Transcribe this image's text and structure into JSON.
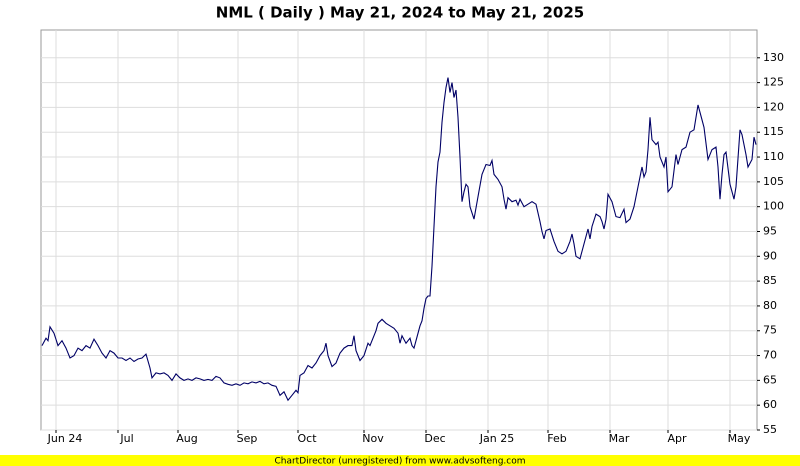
{
  "chart_data": {
    "type": "line",
    "title": "NML ( Daily ) May 21, 2024 to May 21, 2025",
    "footer": "ChartDirector (unregistered) from www.advsofteng.com",
    "xlim": [
      0.5,
      358.5
    ],
    "ylim": [
      55,
      135.6
    ],
    "yticks": [
      55,
      60,
      65,
      70,
      75,
      80,
      85,
      90,
      95,
      100,
      105,
      110,
      115,
      120,
      125,
      130
    ],
    "xticks": [
      {
        "value": 8,
        "label": "Jun 24"
      },
      {
        "value": 39,
        "label": "Jul"
      },
      {
        "value": 69,
        "label": "Aug"
      },
      {
        "value": 99,
        "label": "Sep"
      },
      {
        "value": 129,
        "label": "Oct"
      },
      {
        "value": 162,
        "label": "Nov"
      },
      {
        "value": 193,
        "label": "Dec"
      },
      {
        "value": 224,
        "label": "Jan 25"
      },
      {
        "value": 254,
        "label": "Feb"
      },
      {
        "value": 285,
        "label": "Mar"
      },
      {
        "value": 314,
        "label": "Apr"
      },
      {
        "value": 345,
        "label": "May"
      }
    ],
    "grid": true,
    "series": [
      {
        "color": "#000066",
        "x": [
          1,
          3,
          4,
          5,
          7,
          9,
          11,
          13,
          15,
          17,
          19,
          21,
          23,
          25,
          27,
          29,
          31,
          33,
          35,
          37,
          39,
          41,
          43,
          45,
          47,
          49,
          51,
          53,
          55,
          56,
          58,
          60,
          62,
          64,
          66,
          68,
          70,
          72,
          74,
          76,
          78,
          80,
          82,
          84,
          86,
          88,
          90,
          92,
          94,
          96,
          98,
          100,
          102,
          104,
          106,
          108,
          110,
          112,
          114,
          116,
          118,
          120,
          122,
          124,
          126,
          128,
          129,
          130,
          132,
          134,
          136,
          138,
          140,
          142,
          143,
          144,
          146,
          148,
          150,
          152,
          154,
          156,
          157,
          158,
          160,
          162,
          164,
          165,
          167,
          168,
          169,
          171,
          173,
          175,
          177,
          179,
          180,
          181,
          183,
          185,
          186,
          187,
          188,
          190,
          191,
          192,
          193,
          194,
          195,
          196,
          197,
          198,
          199,
          200,
          201,
          202,
          203,
          204,
          205,
          206,
          207,
          208,
          209,
          210,
          211,
          212,
          213,
          214,
          215,
          217,
          219,
          221,
          223,
          225,
          226,
          227,
          229,
          231,
          232,
          233,
          234,
          236,
          238,
          239,
          240,
          242,
          244,
          246,
          248,
          250,
          251,
          252,
          253,
          255,
          257,
          259,
          261,
          263,
          265,
          266,
          267,
          268,
          270,
          272,
          274,
          275,
          276,
          278,
          280,
          281,
          282,
          283,
          284,
          286,
          288,
          290,
          292,
          293,
          295,
          297,
          299,
          301,
          302,
          303,
          304,
          305,
          306,
          308,
          309,
          310,
          312,
          313,
          314,
          316,
          318,
          319,
          321,
          323,
          325,
          327,
          329,
          331,
          332,
          334,
          336,
          338,
          339,
          340,
          341,
          342,
          343,
          345,
          347,
          348,
          350,
          351,
          353,
          354,
          356,
          357,
          358
        ],
        "values": [
          72,
          73.5,
          73,
          75.8,
          74.5,
          72,
          73,
          71.5,
          69.5,
          70,
          71.5,
          71,
          72,
          71.5,
          73.3,
          72,
          70.5,
          69.5,
          71,
          70.5,
          69.5,
          69.5,
          69,
          69.5,
          68.8,
          69.3,
          69.5,
          70.3,
          67.5,
          65.5,
          66.5,
          66.3,
          66.5,
          66,
          65,
          66.3,
          65.5,
          65,
          65.3,
          65,
          65.5,
          65.3,
          65,
          65.2,
          65,
          65.8,
          65.5,
          64.5,
          64.2,
          64,
          64.3,
          64,
          64.5,
          64.3,
          64.7,
          64.5,
          64.8,
          64.3,
          64.5,
          64,
          63.8,
          62,
          62.7,
          61,
          62,
          63,
          62.5,
          66,
          66.5,
          68,
          67.5,
          68.5,
          70,
          71,
          72.5,
          70,
          67.8,
          68.5,
          70.5,
          71.5,
          72,
          72,
          74,
          71,
          69,
          70,
          72.5,
          72,
          74,
          75,
          76.5,
          77.3,
          76.5,
          76,
          75.5,
          74.5,
          72.5,
          74,
          72.5,
          73.5,
          72,
          71.5,
          73,
          76,
          77,
          79.5,
          81.5,
          82,
          82,
          88,
          96,
          104,
          109,
          111,
          117,
          121,
          124,
          126,
          123,
          125,
          122,
          123.5,
          118,
          110,
          101,
          103,
          104.5,
          104,
          100,
          97.5,
          102,
          106.5,
          108.5,
          108.3,
          109.3,
          106.5,
          105.5,
          104,
          101.5,
          99.5,
          101.8,
          101,
          101.3,
          100.3,
          101.5,
          100,
          100.5,
          101,
          100.5,
          97,
          95,
          93.5,
          95.2,
          95.5,
          93,
          91,
          90.5,
          91,
          93,
          94.5,
          92.5,
          90,
          89.5,
          92.5,
          95.5,
          93.5,
          96,
          98.5,
          98,
          97,
          95.5,
          97.5,
          102.5,
          101,
          98,
          97.8,
          99.5,
          96.8,
          97.5,
          100,
          104,
          108,
          106,
          107,
          111.5,
          118,
          113.5,
          112.5,
          113,
          110,
          108,
          110,
          103,
          104,
          110.5,
          108.5,
          111.5,
          112,
          115,
          115.5,
          120.5,
          117.5,
          116,
          109.5,
          111.5,
          112,
          108,
          101.5,
          106.5,
          110.5,
          111,
          104.5,
          101.5,
          104,
          115.5,
          114.5,
          110.5,
          108,
          109.5,
          114,
          112.5
        ]
      }
    ]
  }
}
